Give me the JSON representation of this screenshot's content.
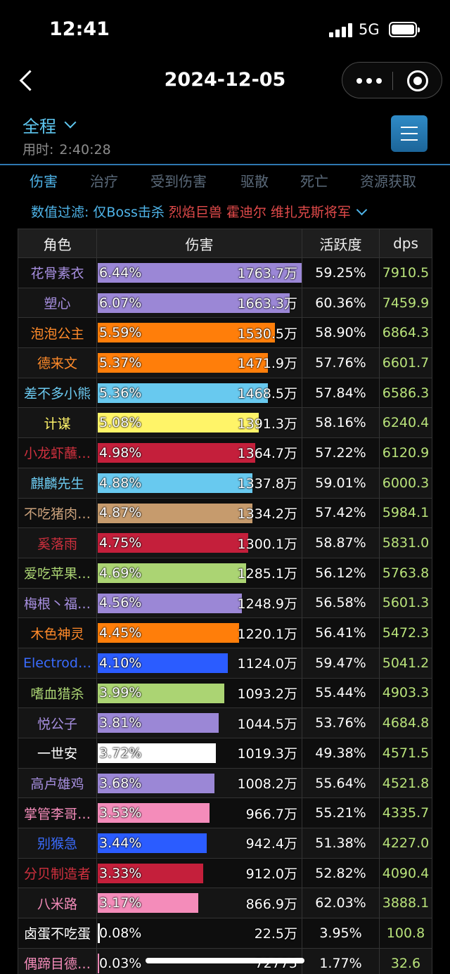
{
  "status": {
    "time": "12:41",
    "network": "5G"
  },
  "nav": {
    "title": "2024-12-05"
  },
  "range": {
    "label": "全程",
    "duration_label": "用时:",
    "duration_value": "2:40:28"
  },
  "tabs": [
    {
      "label": "伤害",
      "active": true
    },
    {
      "label": "治疗",
      "active": false
    },
    {
      "label": "受到伤害",
      "active": false
    },
    {
      "label": "驱散",
      "active": false
    },
    {
      "label": "死亡",
      "active": false
    },
    {
      "label": "资源获取",
      "active": false
    }
  ],
  "filter": {
    "label": "数值过滤:",
    "boss_only": "仅Boss击杀",
    "targets": [
      "烈焰巨兽",
      "霍迪尔",
      "维扎克斯将军"
    ]
  },
  "table": {
    "headers": {
      "name": "角色",
      "damage": "伤害",
      "activity": "活跃度",
      "dps": "dps"
    },
    "rows": [
      {
        "name": "花骨素衣",
        "name_color": "#a78fe0",
        "pct": "6.44%",
        "fill": 1.0,
        "bar_color": "#9b87d6",
        "damage": "1763.7万",
        "activity": "59.25%",
        "dps": "7910.5"
      },
      {
        "name": "塑心",
        "name_color": "#a78fe0",
        "pct": "6.07%",
        "fill": 0.943,
        "bar_color": "#9b87d6",
        "damage": "1663.3万",
        "activity": "60.36%",
        "dps": "7459.9"
      },
      {
        "name": "泡泡公主",
        "name_color": "#ff8a2a",
        "pct": "5.59%",
        "fill": 0.868,
        "bar_color": "#ff7e0a",
        "damage": "1530.5万",
        "activity": "58.90%",
        "dps": "6864.3"
      },
      {
        "name": "德来文",
        "name_color": "#ff8a2a",
        "pct": "5.37%",
        "fill": 0.835,
        "bar_color": "#ff7e0a",
        "damage": "1471.9万",
        "activity": "57.76%",
        "dps": "6601.7"
      },
      {
        "name": "差不多小熊",
        "name_color": "#6ccaf0",
        "pct": "5.36%",
        "fill": 0.833,
        "bar_color": "#68c9ef",
        "damage": "1468.5万",
        "activity": "57.84%",
        "dps": "6586.3"
      },
      {
        "name": "计谋",
        "name_color": "#fff46a",
        "pct": "5.08%",
        "fill": 0.789,
        "bar_color": "#fff468",
        "damage": "1391.3万",
        "activity": "58.16%",
        "dps": "6240.4"
      },
      {
        "name": "小龙虾蘸…",
        "name_color": "#d0303e",
        "pct": "4.98%",
        "fill": 0.774,
        "bar_color": "#c41f3b",
        "damage": "1364.7万",
        "activity": "57.22%",
        "dps": "6120.9"
      },
      {
        "name": "麒麟先生",
        "name_color": "#6ccaf0",
        "pct": "4.88%",
        "fill": 0.759,
        "bar_color": "#68c9ef",
        "damage": "1337.8万",
        "activity": "59.01%",
        "dps": "6000.3"
      },
      {
        "name": "不吃猪肉…",
        "name_color": "#c9a07a",
        "pct": "4.87%",
        "fill": 0.757,
        "bar_color": "#c69b6d",
        "damage": "1334.2万",
        "activity": "57.42%",
        "dps": "5984.1"
      },
      {
        "name": "奚落雨",
        "name_color": "#d0303e",
        "pct": "4.75%",
        "fill": 0.737,
        "bar_color": "#c41f3b",
        "damage": "1300.1万",
        "activity": "58.87%",
        "dps": "5831.0"
      },
      {
        "name": "爱吃苹果…",
        "name_color": "#abd473",
        "pct": "4.69%",
        "fill": 0.729,
        "bar_color": "#abd473",
        "damage": "1285.1万",
        "activity": "56.12%",
        "dps": "5763.8"
      },
      {
        "name": "梅根丶福…",
        "name_color": "#a78fe0",
        "pct": "4.56%",
        "fill": 0.708,
        "bar_color": "#9b87d6",
        "damage": "1248.9万",
        "activity": "56.58%",
        "dps": "5601.3"
      },
      {
        "name": "木色神灵",
        "name_color": "#ff8a2a",
        "pct": "4.45%",
        "fill": 0.692,
        "bar_color": "#ff7e0a",
        "damage": "1220.1万",
        "activity": "56.41%",
        "dps": "5472.3"
      },
      {
        "name": "Electrod…",
        "name_color": "#3a6cff",
        "pct": "4.10%",
        "fill": 0.637,
        "bar_color": "#2b5cff",
        "damage": "1124.0万",
        "activity": "59.47%",
        "dps": "5041.2"
      },
      {
        "name": "嗜血猎杀",
        "name_color": "#abd473",
        "pct": "3.99%",
        "fill": 0.62,
        "bar_color": "#abd473",
        "damage": "1093.2万",
        "activity": "55.44%",
        "dps": "4903.3"
      },
      {
        "name": "悦公子",
        "name_color": "#a78fe0",
        "pct": "3.81%",
        "fill": 0.592,
        "bar_color": "#9b87d6",
        "damage": "1044.5万",
        "activity": "53.76%",
        "dps": "4684.8"
      },
      {
        "name": "一世安",
        "name_color": "#ffffff",
        "pct": "3.72%",
        "fill": 0.578,
        "bar_color": "#ffffff",
        "damage": "1019.3万",
        "activity": "49.38%",
        "dps": "4571.5"
      },
      {
        "name": "高卢雄鸡",
        "name_color": "#a78fe0",
        "pct": "3.68%",
        "fill": 0.572,
        "bar_color": "#9b87d6",
        "damage": "1008.2万",
        "activity": "55.64%",
        "dps": "4521.8"
      },
      {
        "name": "掌管李哥…",
        "name_color": "#f48cba",
        "pct": "3.53%",
        "fill": 0.548,
        "bar_color": "#f48cba",
        "damage": "966.7万",
        "activity": "55.21%",
        "dps": "4335.7"
      },
      {
        "name": "别猴急",
        "name_color": "#3a6cff",
        "pct": "3.44%",
        "fill": 0.534,
        "bar_color": "#2b5cff",
        "damage": "942.4万",
        "activity": "51.38%",
        "dps": "4227.0"
      },
      {
        "name": "分贝制造者",
        "name_color": "#d0303e",
        "pct": "3.33%",
        "fill": 0.517,
        "bar_color": "#c41f3b",
        "damage": "912.0万",
        "activity": "52.82%",
        "dps": "4090.4"
      },
      {
        "name": "八米路",
        "name_color": "#f48cba",
        "pct": "3.17%",
        "fill": 0.492,
        "bar_color": "#f48cba",
        "damage": "866.9万",
        "activity": "62.03%",
        "dps": "3888.1"
      },
      {
        "name": "卤蛋不吃蛋",
        "name_color": "#ffffff",
        "pct": "0.08%",
        "fill": 0.012,
        "bar_color": "#ffffff",
        "damage": "22.5万",
        "activity": "3.95%",
        "dps": "100.8"
      },
      {
        "name": "偶蹄目德…",
        "name_color": "#f48cba",
        "pct": "0.03%",
        "fill": 0.005,
        "bar_color": "#f48cba",
        "damage": "72775",
        "activity": "1.77%",
        "dps": "32.6"
      }
    ]
  }
}
